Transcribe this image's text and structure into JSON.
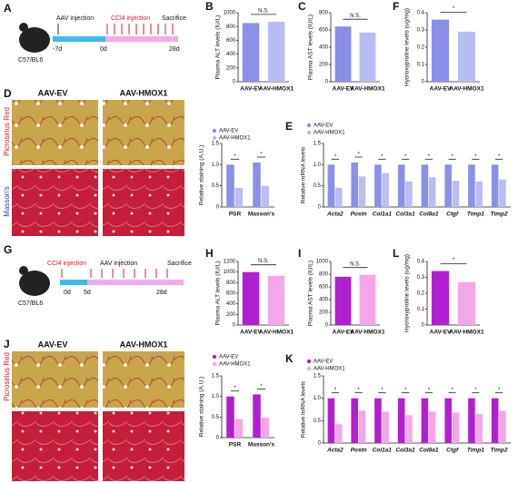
{
  "panel_labels": [
    "A",
    "B",
    "C",
    "F",
    "D",
    "E",
    "G",
    "H",
    "I",
    "L",
    "J",
    "K"
  ],
  "scheme_top": {
    "aav": "AAV injection",
    "ccl4": "CCl4 injection",
    "sac": "Sacrifice",
    "t0": "-7d",
    "t1": "0d",
    "t2": "28d",
    "strain": "C57/BL6"
  },
  "scheme_bottom": {
    "ccl4": "CCl4 injection",
    "aav": "AAV injection",
    "sac": "Sacrifice",
    "t0": "0d",
    "t1": "5d",
    "t2": "28d",
    "strain": "C57/BL6"
  },
  "histology_top": {
    "col1": "AAV-EV",
    "col2": "AAV-HMOX1",
    "row1": "Picrosirius Red",
    "row2": "Masson's"
  },
  "histology_bottom": {
    "col1": "AAV-EV",
    "col2": "AAV-HMOX1",
    "row1": "Picrosirius Red"
  },
  "chart_data": [
    {
      "type": "bar",
      "y_label": "Plasma ALT levels (IU/L)",
      "categories": [
        "AAV-EV",
        "AAV-HMOX1"
      ],
      "values": [
        850,
        870
      ],
      "colors": [
        "#8a90e8",
        "#b9bdf5"
      ],
      "ylim": [
        0,
        1000
      ],
      "yticks": [
        0,
        200,
        400,
        600,
        800,
        1000
      ],
      "annotations": [
        "N.S."
      ]
    },
    {
      "type": "bar",
      "y_label": "Plasma AST levels (IU/L)",
      "categories": [
        "AAV-EV",
        "AAV-HMOX1"
      ],
      "values": [
        640,
        570
      ],
      "colors": [
        "#8a90e8",
        "#b9bdf5"
      ],
      "ylim": [
        0,
        800
      ],
      "yticks": [
        0,
        200,
        400,
        600,
        800
      ],
      "annotations": [
        "N.S."
      ]
    },
    {
      "type": "bar",
      "y_label": "Hydroxyproline levels (ug/mg)",
      "categories": [
        "AAV-EV",
        "AAV-HMOX1"
      ],
      "values": [
        0.36,
        0.29
      ],
      "colors": [
        "#8a90e8",
        "#b9bdf5"
      ],
      "ylim": [
        0,
        0.4
      ],
      "yticks": [
        0,
        0.1,
        0.2,
        0.3,
        0.4
      ],
      "annotations": [
        "*"
      ]
    },
    {
      "type": "bar",
      "y_label": "Relative staining (A.U.)",
      "categories": [
        "PSR",
        "Masson's"
      ],
      "series": [
        {
          "name": "AAV-EV",
          "color": "#8a90e8",
          "values": [
            1.0,
            1.05
          ]
        },
        {
          "name": "AAV-HMOX1",
          "color": "#b9bdf5",
          "values": [
            0.45,
            0.5
          ]
        }
      ],
      "ylim": [
        0,
        1.5
      ],
      "yticks": [
        0,
        {
          "value": 0.5,
          "label": "0.5"
        },
        {
          "value": 1,
          "label": "1.0"
        },
        {
          "value": 1.5,
          "label": "1.5"
        }
      ],
      "annotations": [
        "*",
        "*"
      ]
    },
    {
      "type": "bar",
      "y_label": "Relative mRNA levels",
      "categories": [
        "Acta2",
        "Postn",
        "Col1a1",
        "Col3a1",
        "Col8a1",
        "Ctgf",
        "Timp1",
        "Timp2"
      ],
      "series": [
        {
          "name": "AAV-EV",
          "color": "#8a90e8",
          "values": [
            1.0,
            1.05,
            1.0,
            1.0,
            1.0,
            1.0,
            1.0,
            1.0
          ]
        },
        {
          "name": "AAV-HMOX1",
          "color": "#b9bdf5",
          "values": [
            0.45,
            0.72,
            0.8,
            0.6,
            0.7,
            0.62,
            0.6,
            0.65
          ]
        }
      ],
      "ylim": [
        0,
        1.5
      ],
      "yticks": [
        0,
        {
          "value": 0.5,
          "label": "0.5"
        },
        {
          "value": 1,
          "label": "1.0"
        },
        {
          "value": 1.5,
          "label": "1.5"
        }
      ],
      "annotations": [
        "*",
        "*",
        "*",
        "*",
        "*",
        "*",
        "*",
        "*"
      ]
    },
    {
      "type": "bar",
      "y_label": "Plasma ALT levels (IU/L)",
      "categories": [
        "AAV-EV",
        "AAV-HMOX1"
      ],
      "values": [
        1000,
        930
      ],
      "colors": [
        "#b21fd0",
        "#f3a6e8"
      ],
      "ylim": [
        0,
        1200
      ],
      "yticks": [
        0,
        200,
        400,
        600,
        800,
        1000,
        1200
      ],
      "annotations": [
        "N.S."
      ]
    },
    {
      "type": "bar",
      "y_label": "Plasma AST levels (IU/L)",
      "categories": [
        "AAV-EV",
        "AAV-HMOX1"
      ],
      "values": [
        760,
        790
      ],
      "colors": [
        "#b21fd0",
        "#f3a6e8"
      ],
      "ylim": [
        0,
        1000
      ],
      "yticks": [
        0,
        200,
        400,
        600,
        800,
        1000
      ],
      "annotations": [
        "N.S."
      ]
    },
    {
      "type": "bar",
      "y_label": "Hydroxyproline levels (ug/mg)",
      "categories": [
        "AAV-EV",
        "AAV-HMOX1"
      ],
      "values": [
        0.34,
        0.27
      ],
      "colors": [
        "#b21fd0",
        "#f3a6e8"
      ],
      "ylim": [
        0,
        0.4
      ],
      "yticks": [
        0,
        0.1,
        0.2,
        0.3,
        0.4
      ],
      "annotations": [
        "*"
      ]
    },
    {
      "type": "bar",
      "y_label": "Relative staining (A.U.)",
      "categories": [
        "PSR",
        "Masson's"
      ],
      "series": [
        {
          "name": "AAV-EV",
          "color": "#b21fd0",
          "values": [
            1.0,
            1.05
          ]
        },
        {
          "name": "AAV-HMOX1",
          "color": "#f3a6e8",
          "values": [
            0.45,
            0.48
          ]
        }
      ],
      "ylim": [
        0,
        1.5
      ],
      "yticks": [
        0,
        {
          "value": 0.5,
          "label": "0.5"
        },
        {
          "value": 1,
          "label": "1.0"
        },
        {
          "value": 1.5,
          "label": "1.5"
        }
      ],
      "annotations": [
        "*",
        "*"
      ]
    },
    {
      "type": "bar",
      "y_label": "Relative mRNA levels",
      "categories": [
        "Acta2",
        "Postn",
        "Col1a1",
        "Col3a1",
        "Col8a1",
        "Ctgf",
        "Timp1",
        "Timp2"
      ],
      "series": [
        {
          "name": "AAV-EV",
          "color": "#b21fd0",
          "values": [
            1.0,
            1.0,
            1.0,
            1.0,
            1.0,
            1.0,
            1.0,
            1.0
          ]
        },
        {
          "name": "AAV-HMOX1",
          "color": "#f3a6e8",
          "values": [
            0.42,
            0.72,
            0.7,
            0.62,
            0.7,
            0.68,
            0.65,
            0.72
          ]
        }
      ],
      "ylim": [
        0,
        1.5
      ],
      "yticks": [
        0,
        {
          "value": 0.5,
          "label": "0.5"
        },
        {
          "value": 1,
          "label": "1.0"
        },
        {
          "value": 1.5,
          "label": "1.5"
        }
      ],
      "annotations": [
        "*",
        "*",
        "*",
        "*",
        "*",
        "*",
        "*",
        "*"
      ]
    }
  ]
}
